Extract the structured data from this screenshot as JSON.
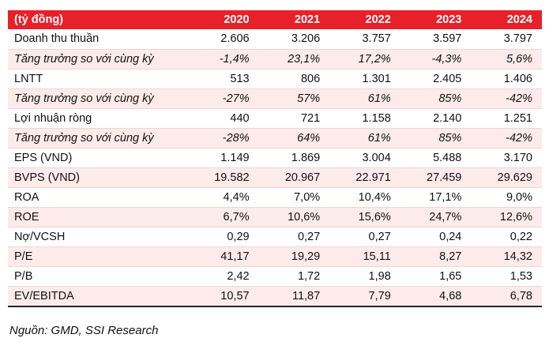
{
  "colors": {
    "header_bg": "#E8202A",
    "alt_row_bg": "#FDEBEB",
    "row_separator": "#F3D4D4",
    "table_bottom_border": "#23242E"
  },
  "table": {
    "header": [
      "(tỷ đồng)",
      "2020",
      "2021",
      "2022",
      "2023",
      "2024"
    ],
    "rows": [
      {
        "label": "Doanh thu thuần",
        "italic": false,
        "values": [
          "2.606",
          "3.206",
          "3.757",
          "3.597",
          "3.797"
        ]
      },
      {
        "label": "Tăng trưởng so với cùng kỳ",
        "italic": true,
        "values": [
          "-1,4%",
          "23,1%",
          "17,2%",
          "-4,3%",
          "5,6%"
        ]
      },
      {
        "label": "LNTT",
        "italic": false,
        "values": [
          "513",
          "806",
          "1.301",
          "2.405",
          "1.406"
        ]
      },
      {
        "label": "Tăng trưởng so với cùng kỳ",
        "italic": true,
        "values": [
          "-27%",
          "57%",
          "61%",
          "85%",
          "-42%"
        ]
      },
      {
        "label": "Lợi nhuận ròng",
        "italic": false,
        "values": [
          "440",
          "721",
          "1.158",
          "2.140",
          "1.251"
        ]
      },
      {
        "label": "Tăng trưởng so với cùng kỳ",
        "italic": true,
        "values": [
          "-28%",
          "64%",
          "61%",
          "85%",
          "-42%"
        ]
      },
      {
        "label": "EPS (VND)",
        "italic": false,
        "values": [
          "1.149",
          "1.869",
          "3.004",
          "5.488",
          "3.170"
        ]
      },
      {
        "label": "BVPS (VND)",
        "italic": false,
        "values": [
          "19.582",
          "20.967",
          "22.971",
          "27.459",
          "29.629"
        ]
      },
      {
        "label": "ROA",
        "italic": false,
        "values": [
          "4,4%",
          "7,0%",
          "10,4%",
          "17,1%",
          "9,0%"
        ]
      },
      {
        "label": "ROE",
        "italic": false,
        "values": [
          "6,7%",
          "10,6%",
          "15,6%",
          "24,7%",
          "12,6%"
        ]
      },
      {
        "label": "Nợ/VCSH",
        "italic": false,
        "values": [
          "0,29",
          "0,27",
          "0,27",
          "0,24",
          "0,22"
        ]
      },
      {
        "label": "P/E",
        "italic": false,
        "values": [
          "41,17",
          "19,29",
          "15,11",
          "8,27",
          "14,32"
        ]
      },
      {
        "label": "P/B",
        "italic": false,
        "values": [
          "2,42",
          "1,72",
          "1,98",
          "1,65",
          "1,53"
        ]
      },
      {
        "label": "EV/EBITDA",
        "italic": false,
        "values": [
          "10,57",
          "11,87",
          "7,79",
          "4,68",
          "6,78"
        ]
      }
    ]
  },
  "footer": {
    "source": "Nguồn: GMD, SSI Research"
  }
}
